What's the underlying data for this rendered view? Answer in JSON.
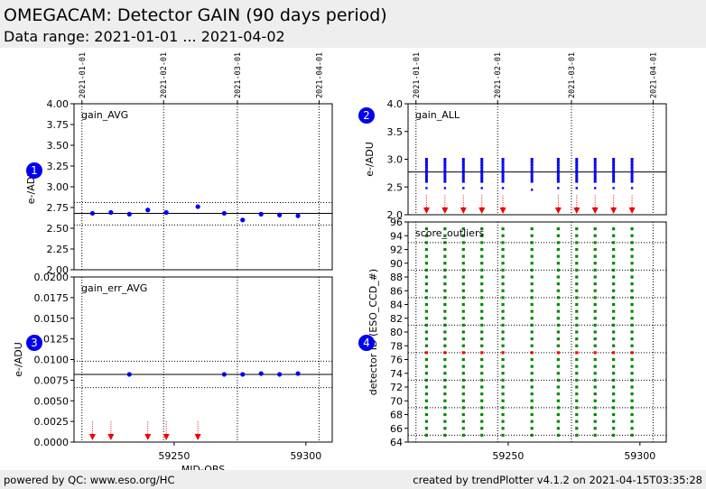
{
  "header": {
    "title": "OMEGACAM: Detector GAIN (90 days period)",
    "subtitle": "Data range: 2021-01-01 ... 2021-04-02"
  },
  "footer": {
    "left": "powered by QC: www.eso.org/HC",
    "right": "created by trendPlotter v4.1.2 on 2021-04-15T03:35:28"
  },
  "colors": {
    "data": "#0000ee",
    "outlier": "#ee0000",
    "ok": "#008800",
    "axis": "#000000"
  },
  "chart_data": [
    {
      "id": "1",
      "type": "scatter",
      "label": "gain_AVG",
      "xlabel": "",
      "ylabel": "e-/ADU",
      "xlim": [
        59212,
        59310
      ],
      "ylim": [
        2.0,
        4.0
      ],
      "yticks": [
        2.0,
        2.25,
        2.5,
        2.75,
        3.0,
        3.25,
        3.5,
        3.75,
        4.0
      ],
      "ytick_labels": [
        "2.00",
        "2.25",
        "2.50",
        "2.75",
        "3.00",
        "3.25",
        "3.50",
        "3.75",
        "4.00"
      ],
      "date_ticks": [
        {
          "label": "2021-01-01",
          "x": 59215
        },
        {
          "label": "2021-02-01",
          "x": 59246
        },
        {
          "label": "2021-03-01",
          "x": 59274
        },
        {
          "label": "2021-04-01",
          "x": 59305
        }
      ],
      "ref_line": 2.68,
      "limits": [
        2.54,
        2.81
      ],
      "x": [
        59219,
        59226,
        59233,
        59240,
        59247,
        59259,
        59269,
        59276,
        59283,
        59290,
        59297
      ],
      "y": [
        2.68,
        2.69,
        2.67,
        2.72,
        2.69,
        2.76,
        2.68,
        2.6,
        2.67,
        2.66,
        2.65
      ]
    },
    {
      "id": "2",
      "type": "scatter",
      "label": "gain_ALL",
      "xlabel": "",
      "ylabel": "e-/ADU",
      "xlim": [
        59212,
        59310
      ],
      "ylim": [
        2.0,
        4.0
      ],
      "yticks": [
        2.0,
        2.5,
        3.0,
        3.5,
        4.0
      ],
      "ytick_labels": [
        "2.0",
        "2.5",
        "3.0",
        "3.5",
        "4.0"
      ],
      "date_ticks": [
        {
          "label": "2021-01-01",
          "x": 59215
        },
        {
          "label": "2021-02-01",
          "x": 59246
        },
        {
          "label": "2021-03-01",
          "x": 59274
        },
        {
          "label": "2021-04-01",
          "x": 59305
        }
      ],
      "ref_line": 2.77,
      "x": [
        59219,
        59226,
        59233,
        59240,
        59248,
        59259,
        59269,
        59276,
        59283,
        59290,
        59297
      ],
      "ymin": [
        2.6,
        2.6,
        2.6,
        2.6,
        2.6,
        2.6,
        2.6,
        2.6,
        2.6,
        2.6,
        2.6
      ],
      "ymax": [
        3.0,
        3.0,
        3.0,
        3.0,
        3.0,
        3.0,
        3.0,
        3.0,
        3.0,
        3.0,
        3.0
      ],
      "low_point": [
        2.48,
        2.48,
        2.48,
        2.48,
        2.48,
        2.45,
        2.48,
        2.48,
        2.48,
        2.48,
        2.48
      ],
      "outlier_x": [
        59219,
        59226,
        59233,
        59240,
        59248,
        59269,
        59276,
        59283,
        59290,
        59297
      ]
    },
    {
      "id": "3",
      "type": "scatter",
      "label": "gain_err_AVG",
      "xlabel": "MJD-OBS",
      "ylabel": "e-/ADU",
      "xlim": [
        59212,
        59310
      ],
      "ylim": [
        0.0,
        0.02
      ],
      "yticks": [
        0.0,
        0.0025,
        0.005,
        0.0075,
        0.01,
        0.0125,
        0.015,
        0.0175,
        0.02
      ],
      "ytick_labels": [
        "0.0000",
        "0.0025",
        "0.0050",
        "0.0075",
        "0.0100",
        "0.0125",
        "0.0150",
        "0.0175",
        "0.0200"
      ],
      "xticks": [
        59250,
        59300
      ],
      "xtick_labels": [
        "59250",
        "59300"
      ],
      "date_x": [
        59215,
        59246,
        59274,
        59305
      ],
      "ref_line": 0.0082,
      "limits": [
        0.0066,
        0.0098
      ],
      "x": [
        59233,
        59269,
        59276,
        59283,
        59290,
        59297
      ],
      "y": [
        0.0082,
        0.0082,
        0.0082,
        0.0083,
        0.0082,
        0.0083
      ],
      "outlier_x": [
        59219,
        59226,
        59240,
        59247,
        59259
      ]
    },
    {
      "id": "4",
      "type": "scatter",
      "label": "score_outliers",
      "xlabel": "",
      "ylabel": "detector ID (ESO_CCD_#)",
      "xlim": [
        59212,
        59310
      ],
      "ylim": [
        64,
        96
      ],
      "yticks": [
        64,
        66,
        68,
        70,
        72,
        74,
        76,
        78,
        80,
        82,
        84,
        86,
        88,
        90,
        92,
        94,
        96
      ],
      "ytick_labels": [
        "64",
        "66",
        "68",
        "70",
        "72",
        "74",
        "76",
        "78",
        "80",
        "82",
        "84",
        "86",
        "88",
        "90",
        "92",
        "94",
        "96"
      ],
      "xticks": [
        59250,
        59300
      ],
      "xtick_labels": [
        "59250",
        "59300"
      ],
      "date_x": [
        59215,
        59246,
        59274,
        59305
      ],
      "h_lines": [
        65,
        69,
        73,
        77,
        81,
        85,
        89,
        93
      ],
      "x": [
        59219,
        59226,
        59233,
        59240,
        59248,
        59259,
        59269,
        59276,
        59283,
        59290,
        59297
      ],
      "detector_range": [
        65,
        95
      ],
      "outlier_detector": 77
    }
  ]
}
